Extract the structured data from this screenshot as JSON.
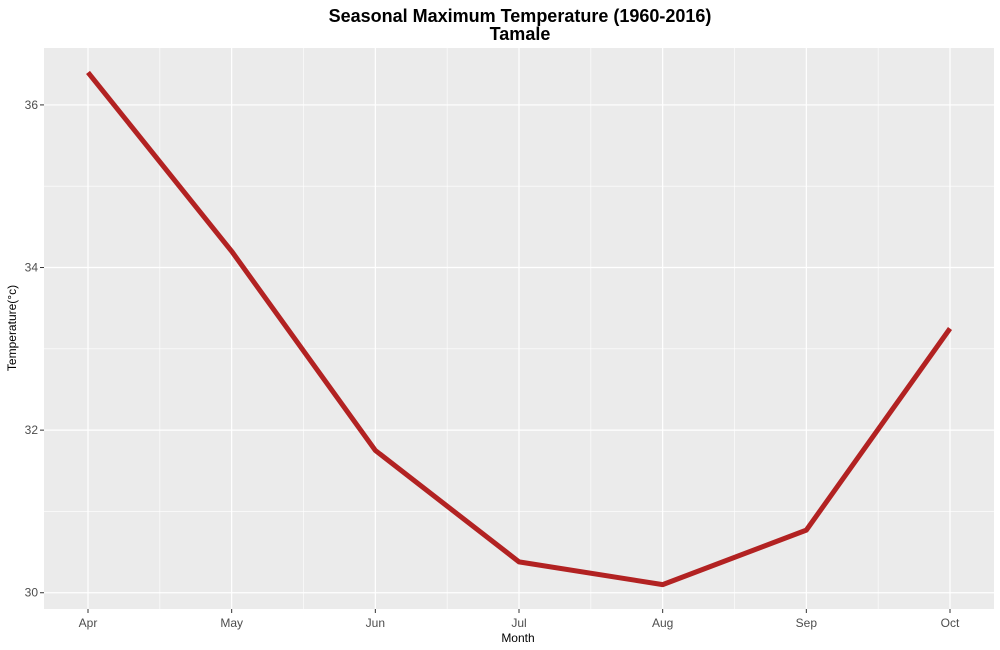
{
  "chart_data": {
    "type": "line",
    "title": "Seasonal Maximum Temperature (1960-2016)",
    "subtitle": "Tamale",
    "xlabel": "Month",
    "ylabel": "Temperature(°c)",
    "categories": [
      "Apr",
      "May",
      "Jun",
      "Jul",
      "Aug",
      "Sep",
      "Oct"
    ],
    "series": [
      {
        "values": [
          36.4,
          34.2,
          31.75,
          30.38,
          30.1,
          30.77,
          33.25
        ]
      }
    ],
    "ylim": [
      29.8,
      36.7
    ],
    "yticks": [
      30,
      32,
      34,
      36
    ],
    "ytick_labels": [
      "30",
      "32",
      "34",
      "36"
    ],
    "grid": true,
    "legend": "none",
    "colors": {
      "line": "#b22222",
      "panel": "#ebebeb",
      "grid": "#ffffff"
    }
  }
}
